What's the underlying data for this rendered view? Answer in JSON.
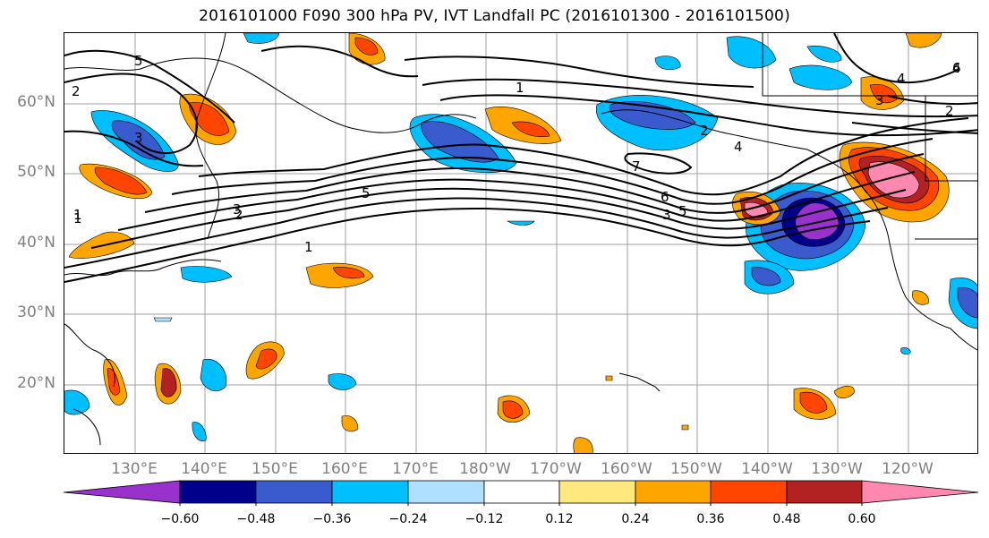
{
  "title": "2016101000 F090 300 hPa PV, IVT Landfall PC (2016101300 - 2016101500)",
  "map": {
    "lat_labels": [
      "60°N",
      "50°N",
      "40°N",
      "30°N",
      "20°N"
    ],
    "lon_labels": [
      "130°E",
      "140°E",
      "150°E",
      "160°E",
      "170°E",
      "180°W",
      "170°W",
      "160°W",
      "150°W",
      "140°W",
      "130°W",
      "120°W"
    ],
    "contour_labels": [
      "1",
      "2",
      "3",
      "4",
      "5",
      "6",
      "7",
      "5",
      "4",
      "3",
      "2",
      "1",
      "3",
      "5",
      "2",
      "1",
      "4",
      "3",
      "6",
      "2",
      "1"
    ]
  },
  "colorbar": {
    "tick_labels": [
      "−0.60",
      "−0.48",
      "−0.36",
      "−0.24",
      "−0.12",
      "0.12",
      "0.24",
      "0.36",
      "0.48",
      "0.60"
    ],
    "colors": [
      "#9932cc",
      "#00008b",
      "#3a5bcd",
      "#00bfff",
      "#b0e0ff",
      "#ffffff",
      "#ffe97f",
      "#ffa500",
      "#ff4500",
      "#b22222",
      "#ff88b0"
    ]
  }
}
